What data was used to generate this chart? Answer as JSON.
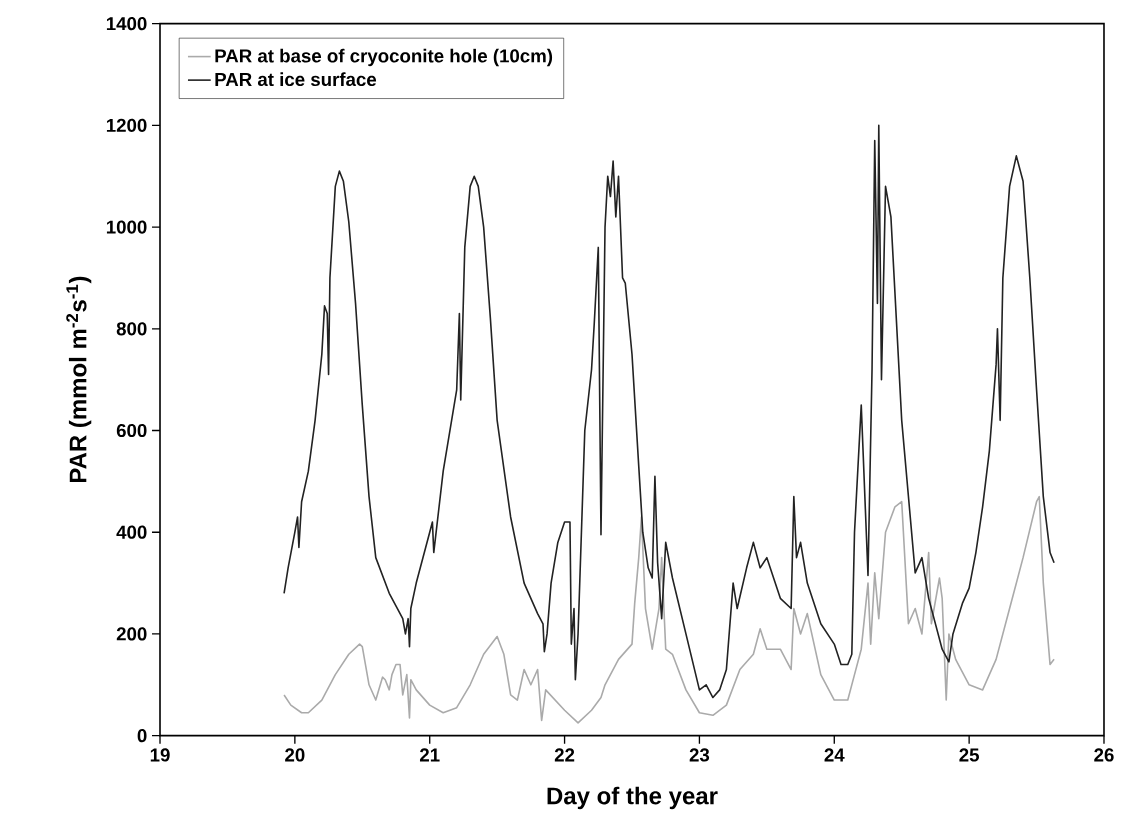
{
  "chart_data": {
    "type": "line",
    "xlabel": "Day of the year",
    "ylabel": "PAR (mmol m$^{-2}$s$^{-1}$)",
    "xlim": [
      19,
      26
    ],
    "xticks": [
      19,
      20,
      21,
      22,
      23,
      24,
      25,
      26
    ],
    "ylim": [
      0,
      1400
    ],
    "yticks": [
      0,
      200,
      400,
      600,
      800,
      1000,
      1200,
      1400
    ],
    "legend": "top left",
    "grid": false,
    "marker": "none",
    "line_style": "solid",
    "series": [
      {
        "name": "PAR at base of cryoconite hole (10cm)",
        "color": "#aaaaaa",
        "x": [
          19.92,
          19.97,
          20.05,
          20.1,
          20.2,
          20.3,
          20.4,
          20.48,
          20.5,
          20.55,
          20.6,
          20.65,
          20.67,
          20.7,
          20.72,
          20.75,
          20.78,
          20.8,
          20.83,
          20.85,
          20.86,
          20.9,
          21.0,
          21.1,
          21.2,
          21.3,
          21.4,
          21.5,
          21.55,
          21.6,
          21.65,
          21.7,
          21.75,
          21.8,
          21.83,
          21.86,
          22.0,
          22.1,
          22.2,
          22.27,
          22.3,
          22.4,
          22.5,
          22.52,
          22.55,
          22.57,
          22.6,
          22.65,
          22.7,
          22.72,
          22.75,
          22.8,
          22.9,
          23.0,
          23.1,
          23.2,
          23.3,
          23.4,
          23.45,
          23.5,
          23.6,
          23.68,
          23.7,
          23.75,
          23.8,
          23.9,
          24.0,
          24.1,
          24.15,
          24.2,
          24.25,
          24.27,
          24.3,
          24.33,
          24.38,
          24.45,
          24.5,
          24.55,
          24.6,
          24.65,
          24.7,
          24.72,
          24.78,
          24.8,
          24.83,
          24.85,
          24.9,
          25.0,
          25.1,
          25.2,
          25.3,
          25.4,
          25.5,
          25.52,
          25.55,
          25.6,
          25.63
        ],
        "values": [
          80,
          60,
          45,
          45,
          70,
          120,
          160,
          180,
          175,
          100,
          70,
          115,
          110,
          90,
          120,
          140,
          140,
          80,
          120,
          35,
          110,
          90,
          60,
          45,
          55,
          100,
          160,
          195,
          160,
          80,
          70,
          130,
          100,
          130,
          30,
          90,
          50,
          25,
          50,
          75,
          100,
          150,
          180,
          260,
          350,
          430,
          250,
          170,
          250,
          350,
          170,
          160,
          90,
          45,
          40,
          60,
          130,
          160,
          210,
          170,
          170,
          130,
          250,
          200,
          240,
          120,
          70,
          70,
          120,
          170,
          300,
          180,
          320,
          230,
          400,
          450,
          460,
          220,
          250,
          200,
          360,
          220,
          310,
          270,
          70,
          200,
          150,
          100,
          90,
          150,
          250,
          350,
          460,
          470,
          300,
          140,
          150
        ]
      },
      {
        "name": "PAR at ice surface",
        "color": "#222222",
        "x": [
          19.92,
          19.95,
          20.0,
          20.02,
          20.03,
          20.05,
          20.1,
          20.15,
          20.2,
          20.22,
          20.24,
          20.25,
          20.26,
          20.3,
          20.33,
          20.36,
          20.4,
          20.45,
          20.5,
          20.55,
          20.6,
          20.7,
          20.8,
          20.82,
          20.84,
          20.85,
          20.86,
          20.9,
          21.0,
          21.02,
          21.03,
          21.1,
          21.2,
          21.22,
          21.23,
          21.26,
          21.3,
          21.33,
          21.36,
          21.4,
          21.45,
          21.5,
          21.6,
          21.7,
          21.8,
          21.84,
          21.85,
          21.87,
          21.9,
          21.95,
          22.0,
          22.04,
          22.05,
          22.07,
          22.08,
          22.1,
          22.15,
          22.2,
          22.22,
          22.25,
          22.27,
          22.3,
          22.32,
          22.34,
          22.36,
          22.38,
          22.4,
          22.43,
          22.45,
          22.5,
          22.55,
          22.58,
          22.62,
          22.65,
          22.67,
          22.69,
          22.72,
          22.75,
          22.8,
          22.9,
          23.0,
          23.05,
          23.1,
          23.15,
          23.2,
          23.25,
          23.28,
          23.35,
          23.4,
          23.45,
          23.5,
          23.6,
          23.68,
          23.7,
          23.72,
          23.75,
          23.8,
          23.9,
          24.0,
          24.05,
          24.1,
          24.13,
          24.15,
          24.2,
          24.25,
          24.28,
          24.3,
          24.32,
          24.33,
          24.35,
          24.38,
          24.42,
          24.5,
          24.58,
          24.6,
          24.65,
          24.7,
          24.8,
          24.85,
          24.88,
          24.95,
          25.0,
          25.05,
          25.1,
          25.15,
          25.2,
          25.21,
          25.23,
          25.25,
          25.3,
          25.35,
          25.4,
          25.45,
          25.5,
          25.55,
          25.6,
          25.63
        ],
        "values": [
          280,
          330,
          400,
          430,
          370,
          460,
          520,
          620,
          750,
          845,
          830,
          710,
          900,
          1080,
          1110,
          1090,
          1010,
          850,
          650,
          470,
          350,
          280,
          230,
          200,
          230,
          175,
          250,
          300,
          400,
          420,
          360,
          520,
          680,
          830,
          660,
          960,
          1080,
          1100,
          1080,
          1000,
          820,
          620,
          430,
          300,
          240,
          220,
          165,
          200,
          300,
          380,
          420,
          420,
          180,
          250,
          110,
          200,
          600,
          720,
          810,
          960,
          395,
          1000,
          1100,
          1060,
          1130,
          1020,
          1100,
          900,
          890,
          750,
          530,
          400,
          330,
          310,
          510,
          340,
          230,
          380,
          310,
          200,
          90,
          100,
          75,
          90,
          130,
          300,
          250,
          330,
          380,
          330,
          350,
          270,
          250,
          470,
          350,
          380,
          300,
          220,
          180,
          140,
          140,
          160,
          400,
          650,
          315,
          720,
          1170,
          850,
          1200,
          700,
          1080,
          1020,
          620,
          380,
          320,
          350,
          270,
          170,
          145,
          200,
          260,
          290,
          360,
          450,
          560,
          730,
          800,
          620,
          900,
          1080,
          1140,
          1090,
          900,
          680,
          470,
          360,
          340
        ]
      }
    ]
  }
}
